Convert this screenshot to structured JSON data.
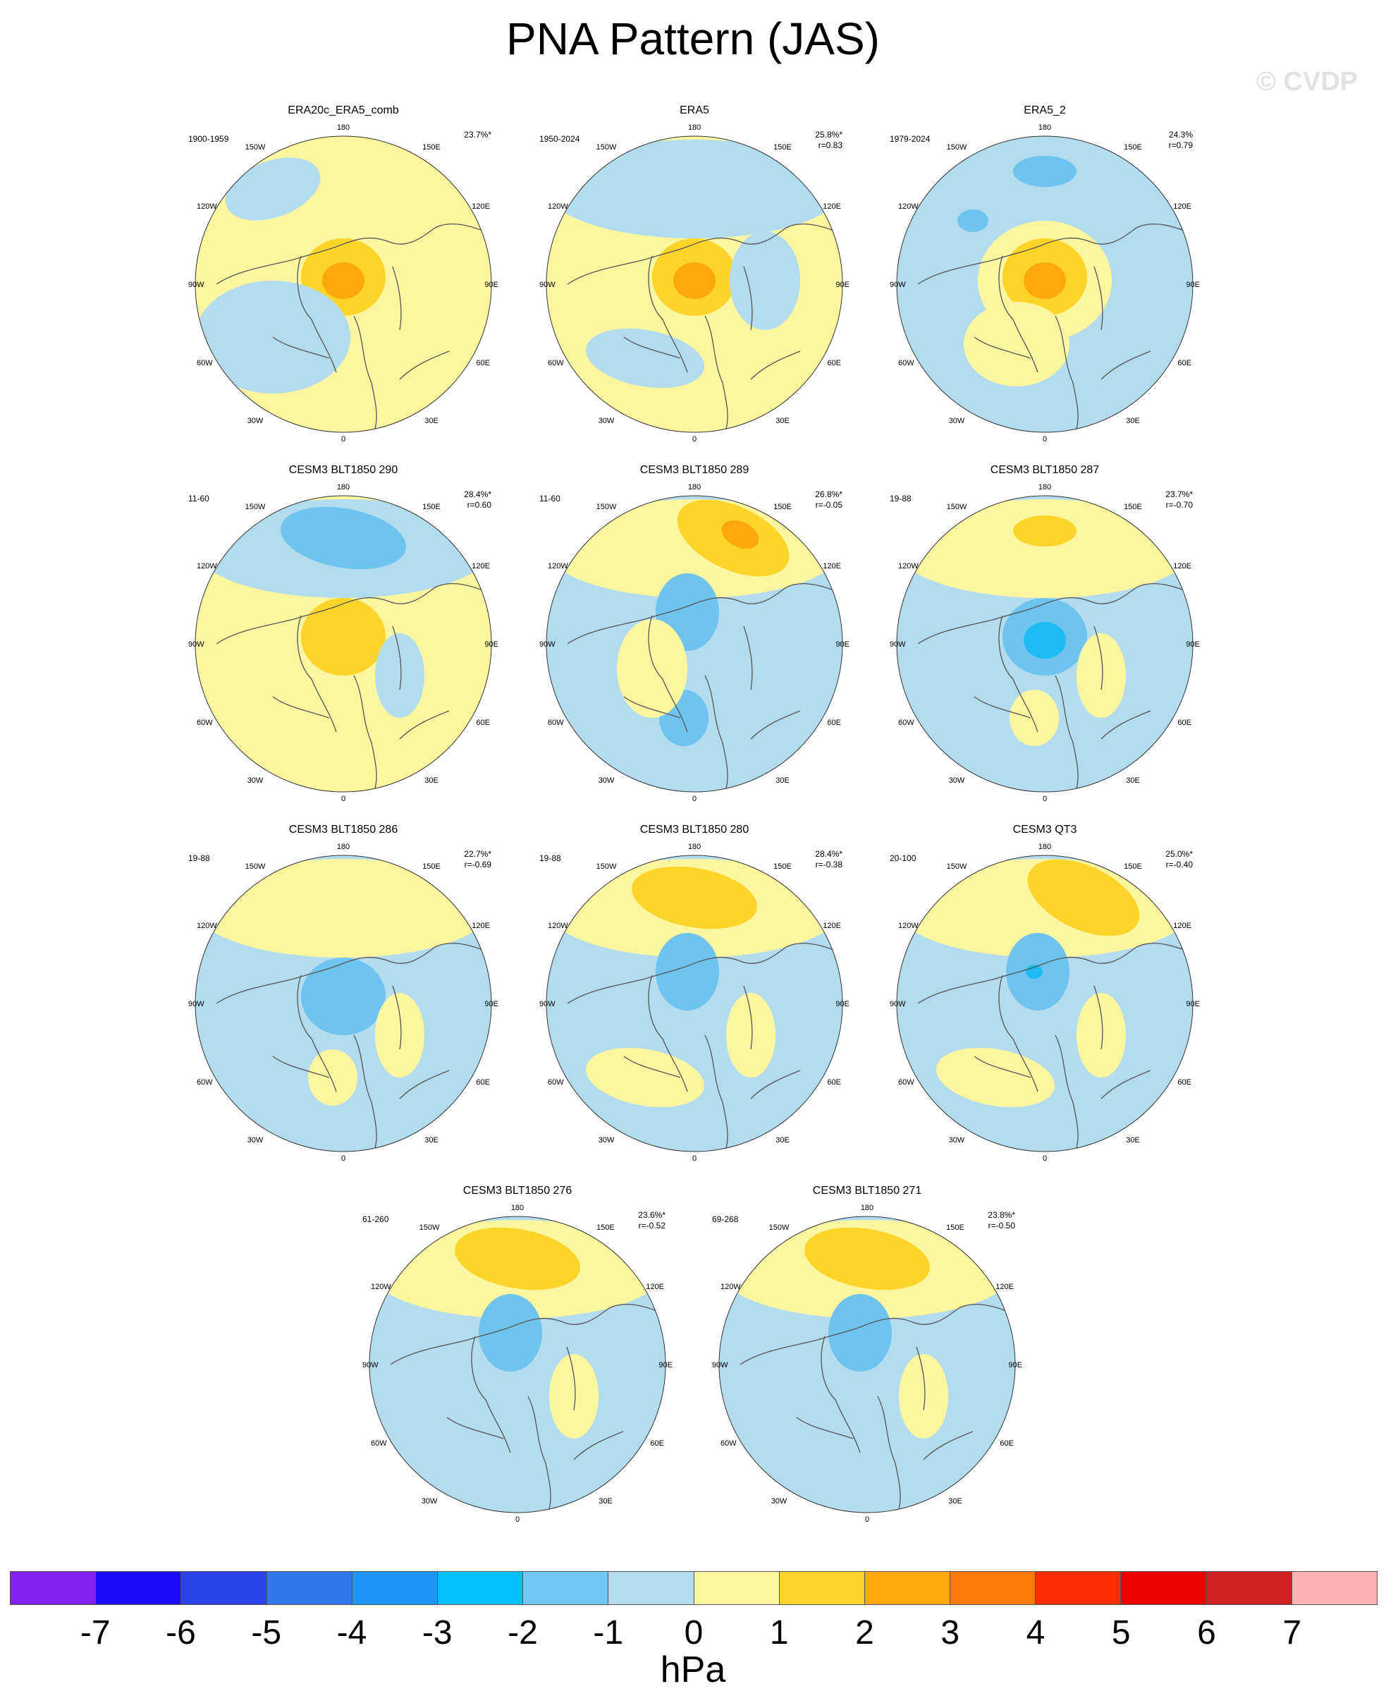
{
  "title": "PNA Pattern (JAS)",
  "watermark": "© CVDP",
  "colors": {
    "ocean_neg1": "#b3dcef",
    "pos1": "#fdf6a0",
    "pos2": "#fdd52a",
    "pos3": "#fda90b",
    "neg2": "#6ec3ef",
    "neg3": "#1ebcf4",
    "coast": "#555555"
  },
  "panels": [
    {
      "title": "ERA20c_ERA5_comb",
      "years": "1900-1959",
      "pct": "23.7%*",
      "r": "",
      "base": "pos1",
      "features": [
        {
          "type": "pos2",
          "at": "pole",
          "size": "medium"
        },
        {
          "type": "pos3",
          "at": "pole",
          "size": "small"
        },
        {
          "type": "neg1",
          "at": "atlantic-west",
          "size": "large"
        },
        {
          "type": "neg1",
          "at": "pacific-northwest",
          "size": "medium"
        }
      ]
    },
    {
      "title": "ERA5",
      "years": "1950-2024",
      "pct": "25.8%*",
      "r": "r=0.83",
      "base": "pos1",
      "features": [
        {
          "type": "pos2",
          "at": "pole",
          "size": "medium"
        },
        {
          "type": "pos3",
          "at": "pole",
          "size": "small"
        },
        {
          "type": "neg2",
          "at": "pacific",
          "size": "small"
        },
        {
          "type": "neg1",
          "at": "pacific",
          "size": "band"
        },
        {
          "type": "neg1",
          "at": "atlantic-west",
          "size": "medium"
        },
        {
          "type": "neg1",
          "at": "siberia",
          "size": "medium"
        }
      ]
    },
    {
      "title": "ERA5_2",
      "years": "1979-2024",
      "pct": "24.3%",
      "r": "r=0.79",
      "base": "neg1",
      "features": [
        {
          "type": "pos1",
          "at": "pole",
          "size": "large"
        },
        {
          "type": "pos2",
          "at": "pole",
          "size": "medium"
        },
        {
          "type": "pos3",
          "at": "pole",
          "size": "small"
        },
        {
          "type": "neg2",
          "at": "pacific",
          "size": "small"
        },
        {
          "type": "neg2",
          "at": "north-america",
          "size": "small"
        },
        {
          "type": "pos1",
          "at": "europe",
          "size": "medium"
        }
      ]
    },
    {
      "title": "CESM3 BLT1850 290",
      "years": "11-60",
      "pct": "28.4%*",
      "r": "r=0.60",
      "base": "pos1",
      "features": [
        {
          "type": "neg1",
          "at": "pacific",
          "size": "band"
        },
        {
          "type": "neg2",
          "at": "pacific",
          "size": "medium"
        },
        {
          "type": "pos2",
          "at": "pole",
          "size": "medium"
        },
        {
          "type": "neg1",
          "at": "siberia",
          "size": "small"
        }
      ]
    },
    {
      "title": "CESM3 BLT1850 289",
      "years": "11-60",
      "pct": "26.8%*",
      "r": "r=-0.05",
      "base": "neg1",
      "features": [
        {
          "type": "pos1",
          "at": "pacific",
          "size": "band"
        },
        {
          "type": "pos2",
          "at": "pacific-east",
          "size": "medium"
        },
        {
          "type": "pos3",
          "at": "pacific-east",
          "size": "small"
        },
        {
          "type": "neg2",
          "at": "alaska",
          "size": "small"
        },
        {
          "type": "neg2",
          "at": "europe",
          "size": "small"
        },
        {
          "type": "pos1",
          "at": "greenland",
          "size": "medium"
        }
      ]
    },
    {
      "title": "CESM3 BLT1850 287",
      "years": "19-88",
      "pct": "23.7%*",
      "r": "r=-0.70",
      "base": "neg1",
      "features": [
        {
          "type": "pos1",
          "at": "pacific",
          "size": "band"
        },
        {
          "type": "pos2",
          "at": "pacific",
          "size": "small"
        },
        {
          "type": "neg2",
          "at": "pole",
          "size": "medium"
        },
        {
          "type": "neg3",
          "at": "pole",
          "size": "small"
        },
        {
          "type": "pos1",
          "at": "europe",
          "size": "small"
        },
        {
          "type": "pos1",
          "at": "siberia",
          "size": "small"
        }
      ]
    },
    {
      "title": "CESM3 BLT1850 286",
      "years": "19-88",
      "pct": "22.7%*",
      "r": "r=-0.69",
      "base": "neg1",
      "features": [
        {
          "type": "pos1",
          "at": "pacific",
          "size": "band"
        },
        {
          "type": "neg2",
          "at": "pole",
          "size": "medium"
        },
        {
          "type": "pos1",
          "at": "europe",
          "size": "small"
        },
        {
          "type": "pos1",
          "at": "siberia",
          "size": "small"
        }
      ]
    },
    {
      "title": "CESM3 BLT1850 280",
      "years": "19-88",
      "pct": "28.4%*",
      "r": "r=-0.38",
      "base": "neg1",
      "features": [
        {
          "type": "pos1",
          "at": "pacific",
          "size": "band"
        },
        {
          "type": "pos2",
          "at": "pacific",
          "size": "medium"
        },
        {
          "type": "neg2",
          "at": "alaska",
          "size": "small"
        },
        {
          "type": "pos1",
          "at": "atlantic-west",
          "size": "medium"
        },
        {
          "type": "pos1",
          "at": "siberia",
          "size": "small"
        }
      ]
    },
    {
      "title": "CESM3 QT3",
      "years": "20-100",
      "pct": "25.0%*",
      "r": "r=-0.40",
      "base": "neg1",
      "features": [
        {
          "type": "pos1",
          "at": "pacific",
          "size": "band"
        },
        {
          "type": "pos2",
          "at": "pacific-east",
          "size": "medium"
        },
        {
          "type": "neg2",
          "at": "alaska",
          "size": "small"
        },
        {
          "type": "neg3",
          "at": "alaska",
          "size": "tiny"
        },
        {
          "type": "pos1",
          "at": "atlantic-west",
          "size": "medium"
        },
        {
          "type": "pos1",
          "at": "siberia",
          "size": "small"
        }
      ]
    },
    {
      "title": "CESM3 BLT1850 276",
      "years": "61-260",
      "pct": "23.6%*",
      "r": "r=-0.52",
      "base": "neg1",
      "features": [
        {
          "type": "pos1",
          "at": "pacific",
          "size": "band"
        },
        {
          "type": "pos2",
          "at": "pacific",
          "size": "medium"
        },
        {
          "type": "neg2",
          "at": "alaska",
          "size": "small"
        },
        {
          "type": "pos1",
          "at": "siberia",
          "size": "small"
        }
      ]
    },
    {
      "title": "CESM3 BLT1850 271",
      "years": "69-268",
      "pct": "23.8%*",
      "r": "r=-0.50",
      "base": "neg1",
      "features": [
        {
          "type": "pos1",
          "at": "pacific",
          "size": "band"
        },
        {
          "type": "pos2",
          "at": "pacific",
          "size": "medium"
        },
        {
          "type": "neg2",
          "at": "alaska",
          "size": "small"
        },
        {
          "type": "pos1",
          "at": "siberia",
          "size": "small"
        }
      ]
    }
  ],
  "lon_labels": {
    "top": "180",
    "bottom": "0",
    "upper_left": "150W",
    "upper_right": "150E",
    "left_upper": "120W",
    "right_upper": "120E",
    "left": "90W",
    "right": "90E",
    "left_lower": "60W",
    "right_lower": "60E",
    "lower_left": "30W",
    "lower_right": "30E"
  },
  "colorbar": {
    "colors": [
      "#8020f0",
      "#1c0cf8",
      "#2c43ec",
      "#3377ec",
      "#1e96f8",
      "#06c0fa",
      "#72c8f4",
      "#b3dcef",
      "#fdf6a0",
      "#fdd52a",
      "#fda90b",
      "#fc7a0b",
      "#fc2c04",
      "#ea0101",
      "#d02022",
      "#feb3b6"
    ],
    "ticks": [
      "-7",
      "-6",
      "-5",
      "-4",
      "-3",
      "-2",
      "-1",
      "0",
      "1",
      "2",
      "3",
      "4",
      "5",
      "6",
      "7"
    ],
    "units": "hPa"
  }
}
